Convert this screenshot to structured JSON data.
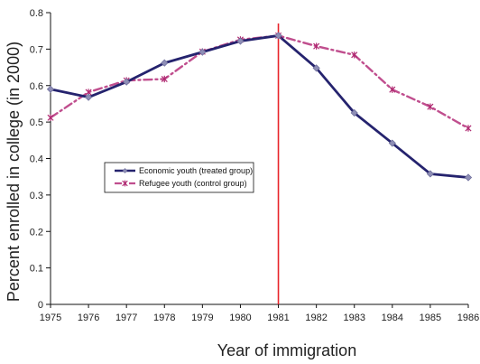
{
  "chart_data": {
    "type": "line",
    "title": "",
    "xlabel": "Year of immigration",
    "ylabel": "Percent enrolled in college (in 2000)",
    "x": [
      1975,
      1976,
      1977,
      1978,
      1979,
      1980,
      1981,
      1982,
      1983,
      1984,
      1985,
      1986
    ],
    "x_tick_labels": [
      "1975",
      "1976",
      "1977",
      "1978",
      "1979",
      "1980",
      "1981",
      "1982",
      "1983",
      "1984",
      "1985",
      "1986"
    ],
    "y_tick_labels": [
      "0",
      "0.1",
      "0.2",
      "0.3",
      "0.4",
      "0.5",
      "0.6",
      "0.7",
      "0.8"
    ],
    "ylim": [
      0,
      0.8
    ],
    "xlim": [
      1975,
      1986
    ],
    "grid": false,
    "legend_position": "left-middle",
    "vertical_line": {
      "x": 1981,
      "color": "#e8232a"
    },
    "series": [
      {
        "name": "Economic youth (treated group)",
        "values": [
          0.59,
          0.568,
          0.61,
          0.662,
          0.692,
          0.722,
          0.737,
          0.648,
          0.525,
          0.442,
          0.358,
          0.348
        ],
        "color": "#25236e",
        "style": "solid",
        "marker": "diamond",
        "marker_color": "#8e8eb6"
      },
      {
        "name": "Refugee youth (control group)",
        "values": [
          0.512,
          0.582,
          0.614,
          0.618,
          0.693,
          0.726,
          0.737,
          0.708,
          0.684,
          0.589,
          0.542,
          0.483
        ],
        "color": "#c04e8e",
        "style": "dash-dot",
        "marker": "star",
        "marker_color": "#b02a72"
      }
    ]
  }
}
